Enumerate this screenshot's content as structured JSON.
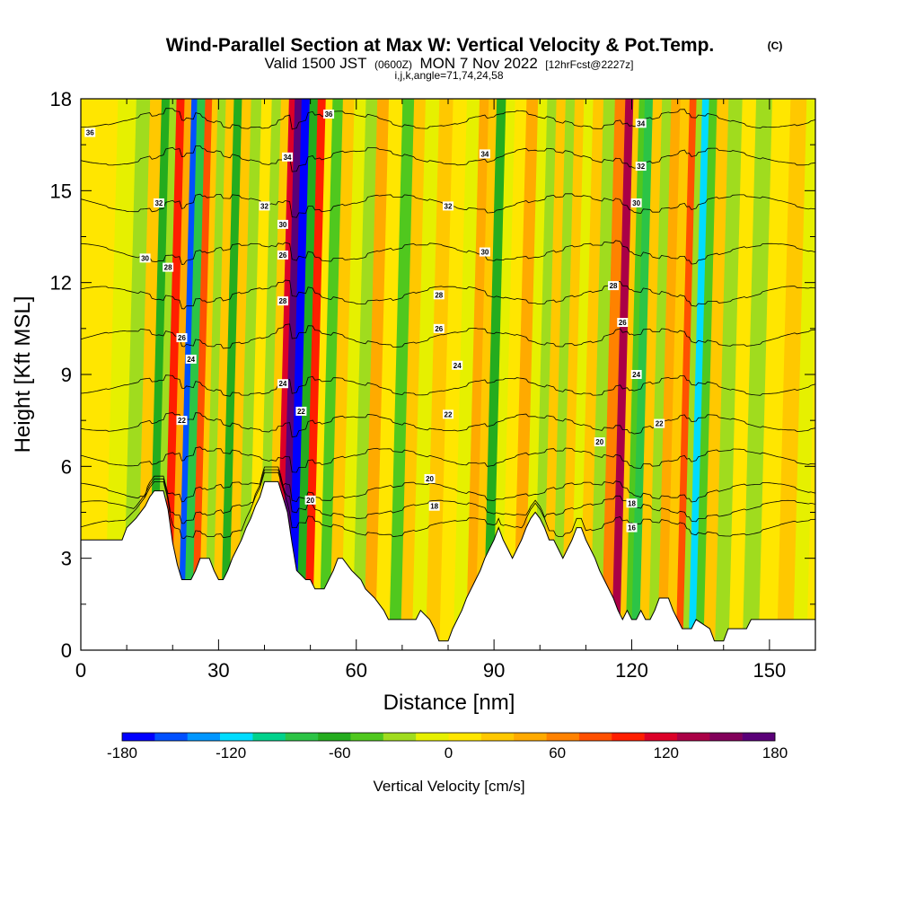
{
  "chart_data": {
    "type": "heatmap",
    "title": "Wind-Parallel Section at Max W: Vertical Velocity & Pot.Temp.",
    "copyright": "(C)",
    "subtitle": {
      "valid": "Valid 1500 JST",
      "utc": "(0600Z)",
      "date": "MON 7 Nov 2022",
      "fcst": "[12hrFcst@2227z]",
      "indices": "i,j,k,angle=71,74,24,58"
    },
    "xlabel": "Distance [nm]",
    "ylabel": "Height [Kft MSL]",
    "xlim": [
      0,
      160
    ],
    "ylim": [
      0,
      18
    ],
    "x_ticks": [
      0,
      30,
      60,
      90,
      120,
      150
    ],
    "y_ticks": [
      0,
      3,
      6,
      9,
      12,
      15,
      18
    ],
    "colorbar": {
      "label": "Vertical Velocity [cm/s]",
      "ticks": [
        -180,
        -120,
        -60,
        0,
        60,
        120,
        180
      ],
      "min": -180,
      "max": 180,
      "colors": [
        "#0000ff",
        "#0050ff",
        "#0096ff",
        "#00dcff",
        "#00d28c",
        "#2cc446",
        "#24ac1e",
        "#50c81e",
        "#a0dc1e",
        "#e6f000",
        "#ffe600",
        "#ffc800",
        "#ffaa00",
        "#ff8200",
        "#ff5000",
        "#ff1e00",
        "#dc0028",
        "#aa0046",
        "#82005a",
        "#5a0078"
      ]
    },
    "terrain_height_kft": [
      {
        "x": 0,
        "h": 3.6
      },
      {
        "x": 9,
        "h": 3.6
      },
      {
        "x": 10,
        "h": 4.0
      },
      {
        "x": 12,
        "h": 4.3
      },
      {
        "x": 14,
        "h": 4.7
      },
      {
        "x": 15,
        "h": 5.0
      },
      {
        "x": 16,
        "h": 5.2
      },
      {
        "x": 18,
        "h": 5.2
      },
      {
        "x": 19,
        "h": 4.6
      },
      {
        "x": 20,
        "h": 3.5
      },
      {
        "x": 21,
        "h": 2.8
      },
      {
        "x": 22,
        "h": 2.3
      },
      {
        "x": 24,
        "h": 2.3
      },
      {
        "x": 25,
        "h": 2.6
      },
      {
        "x": 26,
        "h": 3.0
      },
      {
        "x": 28,
        "h": 3.0
      },
      {
        "x": 29,
        "h": 2.6
      },
      {
        "x": 30,
        "h": 2.3
      },
      {
        "x": 31,
        "h": 2.3
      },
      {
        "x": 32,
        "h": 2.6
      },
      {
        "x": 33,
        "h": 3.0
      },
      {
        "x": 34,
        "h": 3.3
      },
      {
        "x": 35,
        "h": 3.6
      },
      {
        "x": 36,
        "h": 4.0
      },
      {
        "x": 37,
        "h": 4.3
      },
      {
        "x": 38,
        "h": 4.7
      },
      {
        "x": 39,
        "h": 5.0
      },
      {
        "x": 40,
        "h": 5.5
      },
      {
        "x": 43,
        "h": 5.5
      },
      {
        "x": 44,
        "h": 5.0
      },
      {
        "x": 45,
        "h": 4.5
      },
      {
        "x": 46,
        "h": 3.5
      },
      {
        "x": 47,
        "h": 2.6
      },
      {
        "x": 49,
        "h": 2.3
      },
      {
        "x": 50,
        "h": 2.3
      },
      {
        "x": 51,
        "h": 2.0
      },
      {
        "x": 53,
        "h": 2.0
      },
      {
        "x": 54,
        "h": 2.3
      },
      {
        "x": 55,
        "h": 2.6
      },
      {
        "x": 56,
        "h": 3.0
      },
      {
        "x": 57,
        "h": 3.0
      },
      {
        "x": 59,
        "h": 2.6
      },
      {
        "x": 61,
        "h": 2.3
      },
      {
        "x": 62,
        "h": 2.0
      },
      {
        "x": 64,
        "h": 1.7
      },
      {
        "x": 66,
        "h": 1.3
      },
      {
        "x": 67,
        "h": 1.0
      },
      {
        "x": 73,
        "h": 1.0
      },
      {
        "x": 74,
        "h": 1.3
      },
      {
        "x": 76,
        "h": 1.0
      },
      {
        "x": 77,
        "h": 0.7
      },
      {
        "x": 78,
        "h": 0.3
      },
      {
        "x": 80,
        "h": 0.3
      },
      {
        "x": 81,
        "h": 0.7
      },
      {
        "x": 82,
        "h": 1.0
      },
      {
        "x": 83,
        "h": 1.3
      },
      {
        "x": 84,
        "h": 1.7
      },
      {
        "x": 85,
        "h": 2.0
      },
      {
        "x": 86,
        "h": 2.3
      },
      {
        "x": 87,
        "h": 2.6
      },
      {
        "x": 88,
        "h": 3.0
      },
      {
        "x": 89,
        "h": 3.3
      },
      {
        "x": 90,
        "h": 3.6
      },
      {
        "x": 91,
        "h": 4.0
      },
      {
        "x": 92,
        "h": 3.6
      },
      {
        "x": 93,
        "h": 3.3
      },
      {
        "x": 94,
        "h": 3.0
      },
      {
        "x": 95,
        "h": 3.3
      },
      {
        "x": 96,
        "h": 3.6
      },
      {
        "x": 97,
        "h": 4.0
      },
      {
        "x": 98,
        "h": 4.3
      },
      {
        "x": 99,
        "h": 4.5
      },
      {
        "x": 100,
        "h": 4.3
      },
      {
        "x": 101,
        "h": 4.0
      },
      {
        "x": 102,
        "h": 3.6
      },
      {
        "x": 103,
        "h": 3.6
      },
      {
        "x": 104,
        "h": 3.3
      },
      {
        "x": 105,
        "h": 3.0
      },
      {
        "x": 106,
        "h": 3.3
      },
      {
        "x": 107,
        "h": 3.6
      },
      {
        "x": 108,
        "h": 4.0
      },
      {
        "x": 109,
        "h": 4.0
      },
      {
        "x": 110,
        "h": 3.6
      },
      {
        "x": 111,
        "h": 3.3
      },
      {
        "x": 112,
        "h": 3.0
      },
      {
        "x": 113,
        "h": 2.6
      },
      {
        "x": 114,
        "h": 2.3
      },
      {
        "x": 115,
        "h": 2.0
      },
      {
        "x": 116,
        "h": 1.7
      },
      {
        "x": 117,
        "h": 1.3
      },
      {
        "x": 118,
        "h": 1.0
      },
      {
        "x": 119,
        "h": 1.3
      },
      {
        "x": 120,
        "h": 1.0
      },
      {
        "x": 121,
        "h": 1.0
      },
      {
        "x": 122,
        "h": 1.3
      },
      {
        "x": 123,
        "h": 1.0
      },
      {
        "x": 124,
        "h": 1.0
      },
      {
        "x": 125,
        "h": 1.3
      },
      {
        "x": 126,
        "h": 1.7
      },
      {
        "x": 128,
        "h": 1.7
      },
      {
        "x": 129,
        "h": 1.3
      },
      {
        "x": 130,
        "h": 1.0
      },
      {
        "x": 131,
        "h": 0.7
      },
      {
        "x": 133,
        "h": 0.7
      },
      {
        "x": 134,
        "h": 1.0
      },
      {
        "x": 137,
        "h": 0.7
      },
      {
        "x": 138,
        "h": 0.3
      },
      {
        "x": 140,
        "h": 0.3
      },
      {
        "x": 141,
        "h": 0.7
      },
      {
        "x": 145,
        "h": 0.7
      },
      {
        "x": 146,
        "h": 1.0
      },
      {
        "x": 160,
        "h": 1.0
      }
    ],
    "vertical_velocity_bands": [
      {
        "x": 3,
        "w": 16
      },
      {
        "x": 8,
        "w": -12
      },
      {
        "x": 11,
        "w": -25
      },
      {
        "x": 14,
        "w": 30
      },
      {
        "x": 16,
        "w": -55
      },
      {
        "x": 17.5,
        "w": -30
      },
      {
        "x": 19,
        "w": 95
      },
      {
        "x": 21,
        "w": 40
      },
      {
        "x": 22,
        "w": -150
      },
      {
        "x": 23.5,
        "w": -80
      },
      {
        "x": 25.5,
        "w": 80
      },
      {
        "x": 26.5,
        "w": 20
      },
      {
        "x": 28,
        "w": -30
      },
      {
        "x": 30,
        "w": 20
      },
      {
        "x": 31.5,
        "w": -70
      },
      {
        "x": 33.5,
        "w": 25
      },
      {
        "x": 35.5,
        "w": -20
      },
      {
        "x": 38,
        "w": 15
      },
      {
        "x": 40,
        "w": -20
      },
      {
        "x": 42,
        "w": 20
      },
      {
        "x": 43.5,
        "w": 110
      },
      {
        "x": 44.5,
        "w": 165
      },
      {
        "x": 46.5,
        "w": -175
      },
      {
        "x": 48,
        "w": -60
      },
      {
        "x": 50,
        "w": 100
      },
      {
        "x": 51.5,
        "w": 10
      },
      {
        "x": 53,
        "w": -45
      },
      {
        "x": 56,
        "w": 30
      },
      {
        "x": 58,
        "w": -15
      },
      {
        "x": 61,
        "w": -35
      },
      {
        "x": 63,
        "w": 40
      },
      {
        "x": 66,
        "w": 15
      },
      {
        "x": 69,
        "w": -40
      },
      {
        "x": 71,
        "w": 20
      },
      {
        "x": 74,
        "w": -15
      },
      {
        "x": 77,
        "w": 30
      },
      {
        "x": 80,
        "w": 12
      },
      {
        "x": 83,
        "w": -10
      },
      {
        "x": 85.5,
        "w": 45
      },
      {
        "x": 87,
        "w": 30
      },
      {
        "x": 89,
        "w": -55
      },
      {
        "x": 91,
        "w": -15
      },
      {
        "x": 93,
        "w": 15
      },
      {
        "x": 96,
        "w": 45
      },
      {
        "x": 98,
        "w": -15
      },
      {
        "x": 100,
        "w": -35
      },
      {
        "x": 102,
        "w": 25
      },
      {
        "x": 104,
        "w": -30
      },
      {
        "x": 106,
        "w": 35
      },
      {
        "x": 108,
        "w": -10
      },
      {
        "x": 110,
        "w": 20
      },
      {
        "x": 112.5,
        "w": -20
      },
      {
        "x": 115,
        "w": 60
      },
      {
        "x": 117,
        "w": 130
      },
      {
        "x": 118.5,
        "w": 30
      },
      {
        "x": 119.5,
        "w": -50
      },
      {
        "x": 121,
        "w": -85
      },
      {
        "x": 123,
        "w": 20
      },
      {
        "x": 125,
        "w": -35
      },
      {
        "x": 127,
        "w": 45
      },
      {
        "x": 129,
        "w": 20
      },
      {
        "x": 131,
        "w": 75
      },
      {
        "x": 132,
        "w": -20
      },
      {
        "x": 133.5,
        "w": -110
      },
      {
        "x": 135,
        "w": -40
      },
      {
        "x": 137,
        "w": 25
      },
      {
        "x": 140,
        "w": -20
      },
      {
        "x": 143,
        "w": 12
      },
      {
        "x": 146,
        "w": -25
      },
      {
        "x": 150,
        "w": 15
      },
      {
        "x": 154,
        "w": 25
      },
      {
        "x": 157,
        "w": -10
      },
      {
        "x": 160,
        "w": 15
      }
    ],
    "theta_contours_K": [
      14,
      16,
      18,
      20,
      22,
      24,
      26,
      28,
      30,
      32,
      34,
      36,
      38
    ],
    "contour_labels": [
      {
        "t": "36",
        "x": 2,
        "y": 16.9
      },
      {
        "t": "34",
        "x": 45,
        "y": 16.1
      },
      {
        "t": "36",
        "x": 54,
        "y": 17.5
      },
      {
        "t": "34",
        "x": 88,
        "y": 16.2
      },
      {
        "t": "34",
        "x": 122,
        "y": 17.2
      },
      {
        "t": "32",
        "x": 17,
        "y": 14.6
      },
      {
        "t": "32",
        "x": 40,
        "y": 14.5
      },
      {
        "t": "32",
        "x": 80,
        "y": 14.5
      },
      {
        "t": "32",
        "x": 122,
        "y": 15.8
      },
      {
        "t": "30",
        "x": 44,
        "y": 13.9
      },
      {
        "t": "30",
        "x": 88,
        "y": 13.0
      },
      {
        "t": "30",
        "x": 121,
        "y": 14.6
      },
      {
        "t": "30",
        "x": 14,
        "y": 12.8
      },
      {
        "t": "28",
        "x": 19,
        "y": 12.5
      },
      {
        "t": "26",
        "x": 44,
        "y": 12.9
      },
      {
        "t": "28",
        "x": 78,
        "y": 11.6
      },
      {
        "t": "28",
        "x": 116,
        "y": 11.9
      },
      {
        "t": "28",
        "x": 44,
        "y": 11.4
      },
      {
        "t": "26",
        "x": 78,
        "y": 10.5
      },
      {
        "t": "26",
        "x": 118,
        "y": 10.7
      },
      {
        "t": "26",
        "x": 22,
        "y": 10.2
      },
      {
        "t": "24",
        "x": 24,
        "y": 9.5
      },
      {
        "t": "24",
        "x": 82,
        "y": 9.3
      },
      {
        "t": "24",
        "x": 121,
        "y": 9.0
      },
      {
        "t": "24",
        "x": 44,
        "y": 8.7
      },
      {
        "t": "22",
        "x": 48,
        "y": 7.8
      },
      {
        "t": "22",
        "x": 80,
        "y": 7.7
      },
      {
        "t": "22",
        "x": 126,
        "y": 7.4
      },
      {
        "t": "22",
        "x": 22,
        "y": 7.5
      },
      {
        "t": "20",
        "x": 113,
        "y": 6.8
      },
      {
        "t": "20",
        "x": 76,
        "y": 5.6
      },
      {
        "t": "20",
        "x": 50,
        "y": 4.9
      },
      {
        "t": "18",
        "x": 77,
        "y": 4.7
      },
      {
        "t": "18",
        "x": 120,
        "y": 4.8
      },
      {
        "t": "16",
        "x": 120,
        "y": 4.0
      }
    ]
  }
}
